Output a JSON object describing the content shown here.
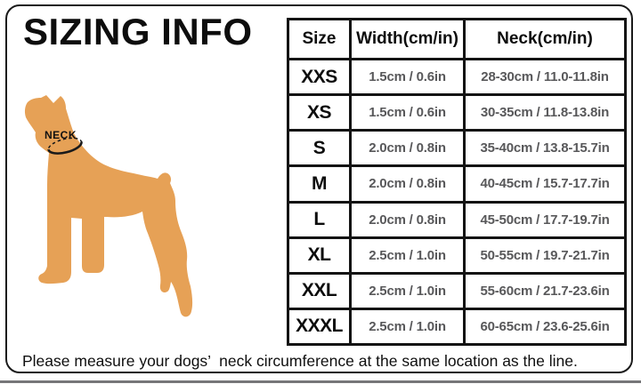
{
  "page": {
    "title": "SIZING INFO",
    "caption": "Please measure your dogs’  neck circumference at the same location as the line."
  },
  "diagram": {
    "neck_label": "NECK"
  },
  "chart_data": {
    "type": "table",
    "title": "SIZING INFO",
    "columns": [
      "Size",
      "Width(cm/in)",
      "Neck(cm/in)"
    ],
    "rows": [
      {
        "size": "XXS",
        "width": "1.5cm / 0.6in",
        "neck": "28-30cm / 11.0-11.8in"
      },
      {
        "size": "XS",
        "width": "1.5cm / 0.6in",
        "neck": "30-35cm / 11.8-13.8in"
      },
      {
        "size": "S",
        "width": "2.0cm / 0.8in",
        "neck": "35-40cm / 13.8-15.7in"
      },
      {
        "size": "M",
        "width": "2.0cm / 0.8in",
        "neck": "40-45cm / 15.7-17.7in"
      },
      {
        "size": "L",
        "width": "2.0cm / 0.8in",
        "neck": "45-50cm / 17.7-19.7in"
      },
      {
        "size": "XL",
        "width": "2.5cm / 1.0in",
        "neck": "50-55cm / 19.7-21.7in"
      },
      {
        "size": "XXL",
        "width": "2.5cm / 1.0in",
        "neck": "55-60cm / 21.7-23.6in"
      },
      {
        "size": "XXXL",
        "width": "2.5cm / 1.0in",
        "neck": "60-65cm / 23.6-25.6in"
      }
    ]
  },
  "colors": {
    "dog": "#E6A156",
    "ink": "#141414",
    "table_value_text": "#58585a"
  }
}
